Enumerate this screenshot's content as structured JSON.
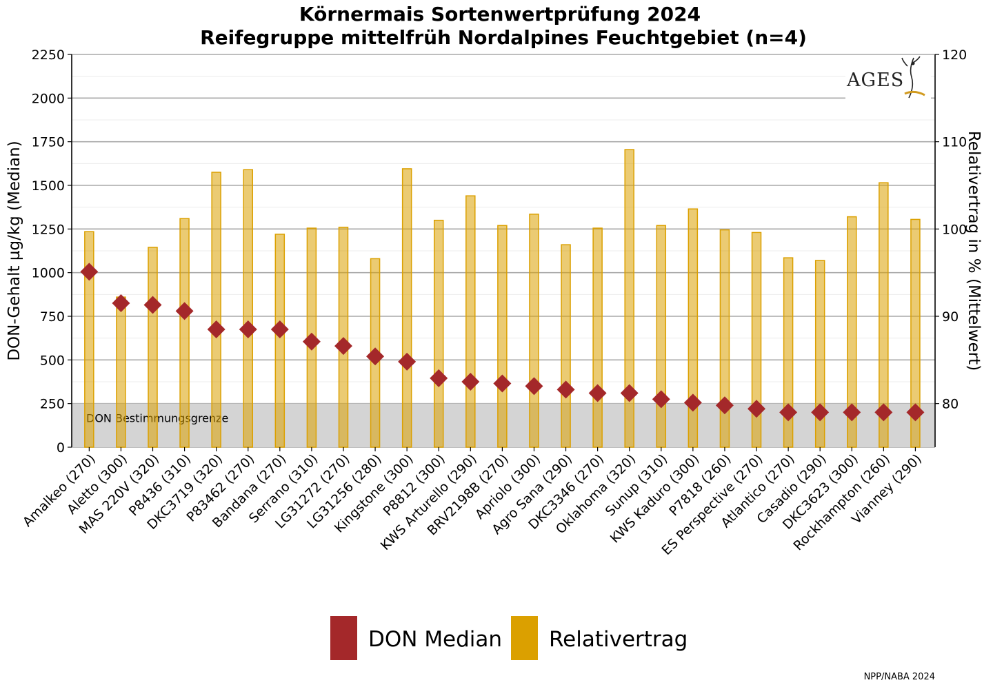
{
  "chart_data": {
    "type": "bar",
    "title": "Körnermais Sortenwertprüfung 2024",
    "subtitle": "Reifegruppe mittelfrüh Nordalpines Feuchtgebiet (n=4)",
    "ylabel_left": "DON-Gehalt µg/kg (Median)",
    "ylabel_right": "Relativertrag in % (Mittelwert)",
    "ylim_left": [
      0,
      2250
    ],
    "ylim_right": [
      75,
      120
    ],
    "yticks_left": [
      "0",
      "250",
      "500",
      "750",
      "1000",
      "1250",
      "1500",
      "1750",
      "2000",
      "2250"
    ],
    "yticks_right": [
      "80",
      "90",
      "100",
      "110",
      "120"
    ],
    "grid": true,
    "categories": [
      "Amalkeo (270)",
      "Aletto (300)",
      "MAS 220V (320)",
      "P8436 (310)",
      "DKC3719 (320)",
      "P83462 (270)",
      "Bandana (270)",
      "Serrano (310)",
      "LG31272 (270)",
      "LG31256 (280)",
      "Kingstone (300)",
      "P8812 (300)",
      "KWS Arturello (290)",
      "BRV2198B (270)",
      "Apriolo (300)",
      "Agro Sana (290)",
      "DKC3346 (270)",
      "Oklahoma (320)",
      "Sunup (310)",
      "KWS Kaduro (300)",
      "P7818 (260)",
      "ES Perspective (270)",
      "Atlantico (270)",
      "Casadio (290)",
      "DKC3623 (300)",
      "Rockhampton (260)",
      "Vianney (290)"
    ],
    "series": [
      {
        "name": "DON Median",
        "axis": "left",
        "mark": "diamond",
        "color": "#a4282a",
        "values": [
          1005,
          825,
          815,
          780,
          675,
          675,
          675,
          605,
          580,
          520,
          490,
          395,
          375,
          365,
          350,
          330,
          310,
          310,
          275,
          255,
          240,
          220,
          200,
          200,
          200,
          200,
          200
        ]
      },
      {
        "name": "Relativertrag",
        "axis": "right",
        "mark": "bar",
        "color": "#dba000",
        "values": [
          99.7,
          92.2,
          97.9,
          101.2,
          106.5,
          106.8,
          99.4,
          100.1,
          100.2,
          96.6,
          106.9,
          101.0,
          103.8,
          100.4,
          101.7,
          98.2,
          100.1,
          109.1,
          100.4,
          102.3,
          99.9,
          99.6,
          96.7,
          96.4,
          101.4,
          105.3,
          101.1
        ]
      }
    ],
    "threshold": {
      "label": "DON Bestimmungsgrenze",
      "from": 0,
      "to": 250
    },
    "legend": {
      "placement": "bottom-center",
      "items": [
        {
          "label": "DON Median",
          "color": "#a4282a"
        },
        {
          "label": "Relativertrag",
          "color": "#dba000"
        }
      ]
    },
    "logo_text": "AGES",
    "footer": "NPP/NABA 2024"
  }
}
